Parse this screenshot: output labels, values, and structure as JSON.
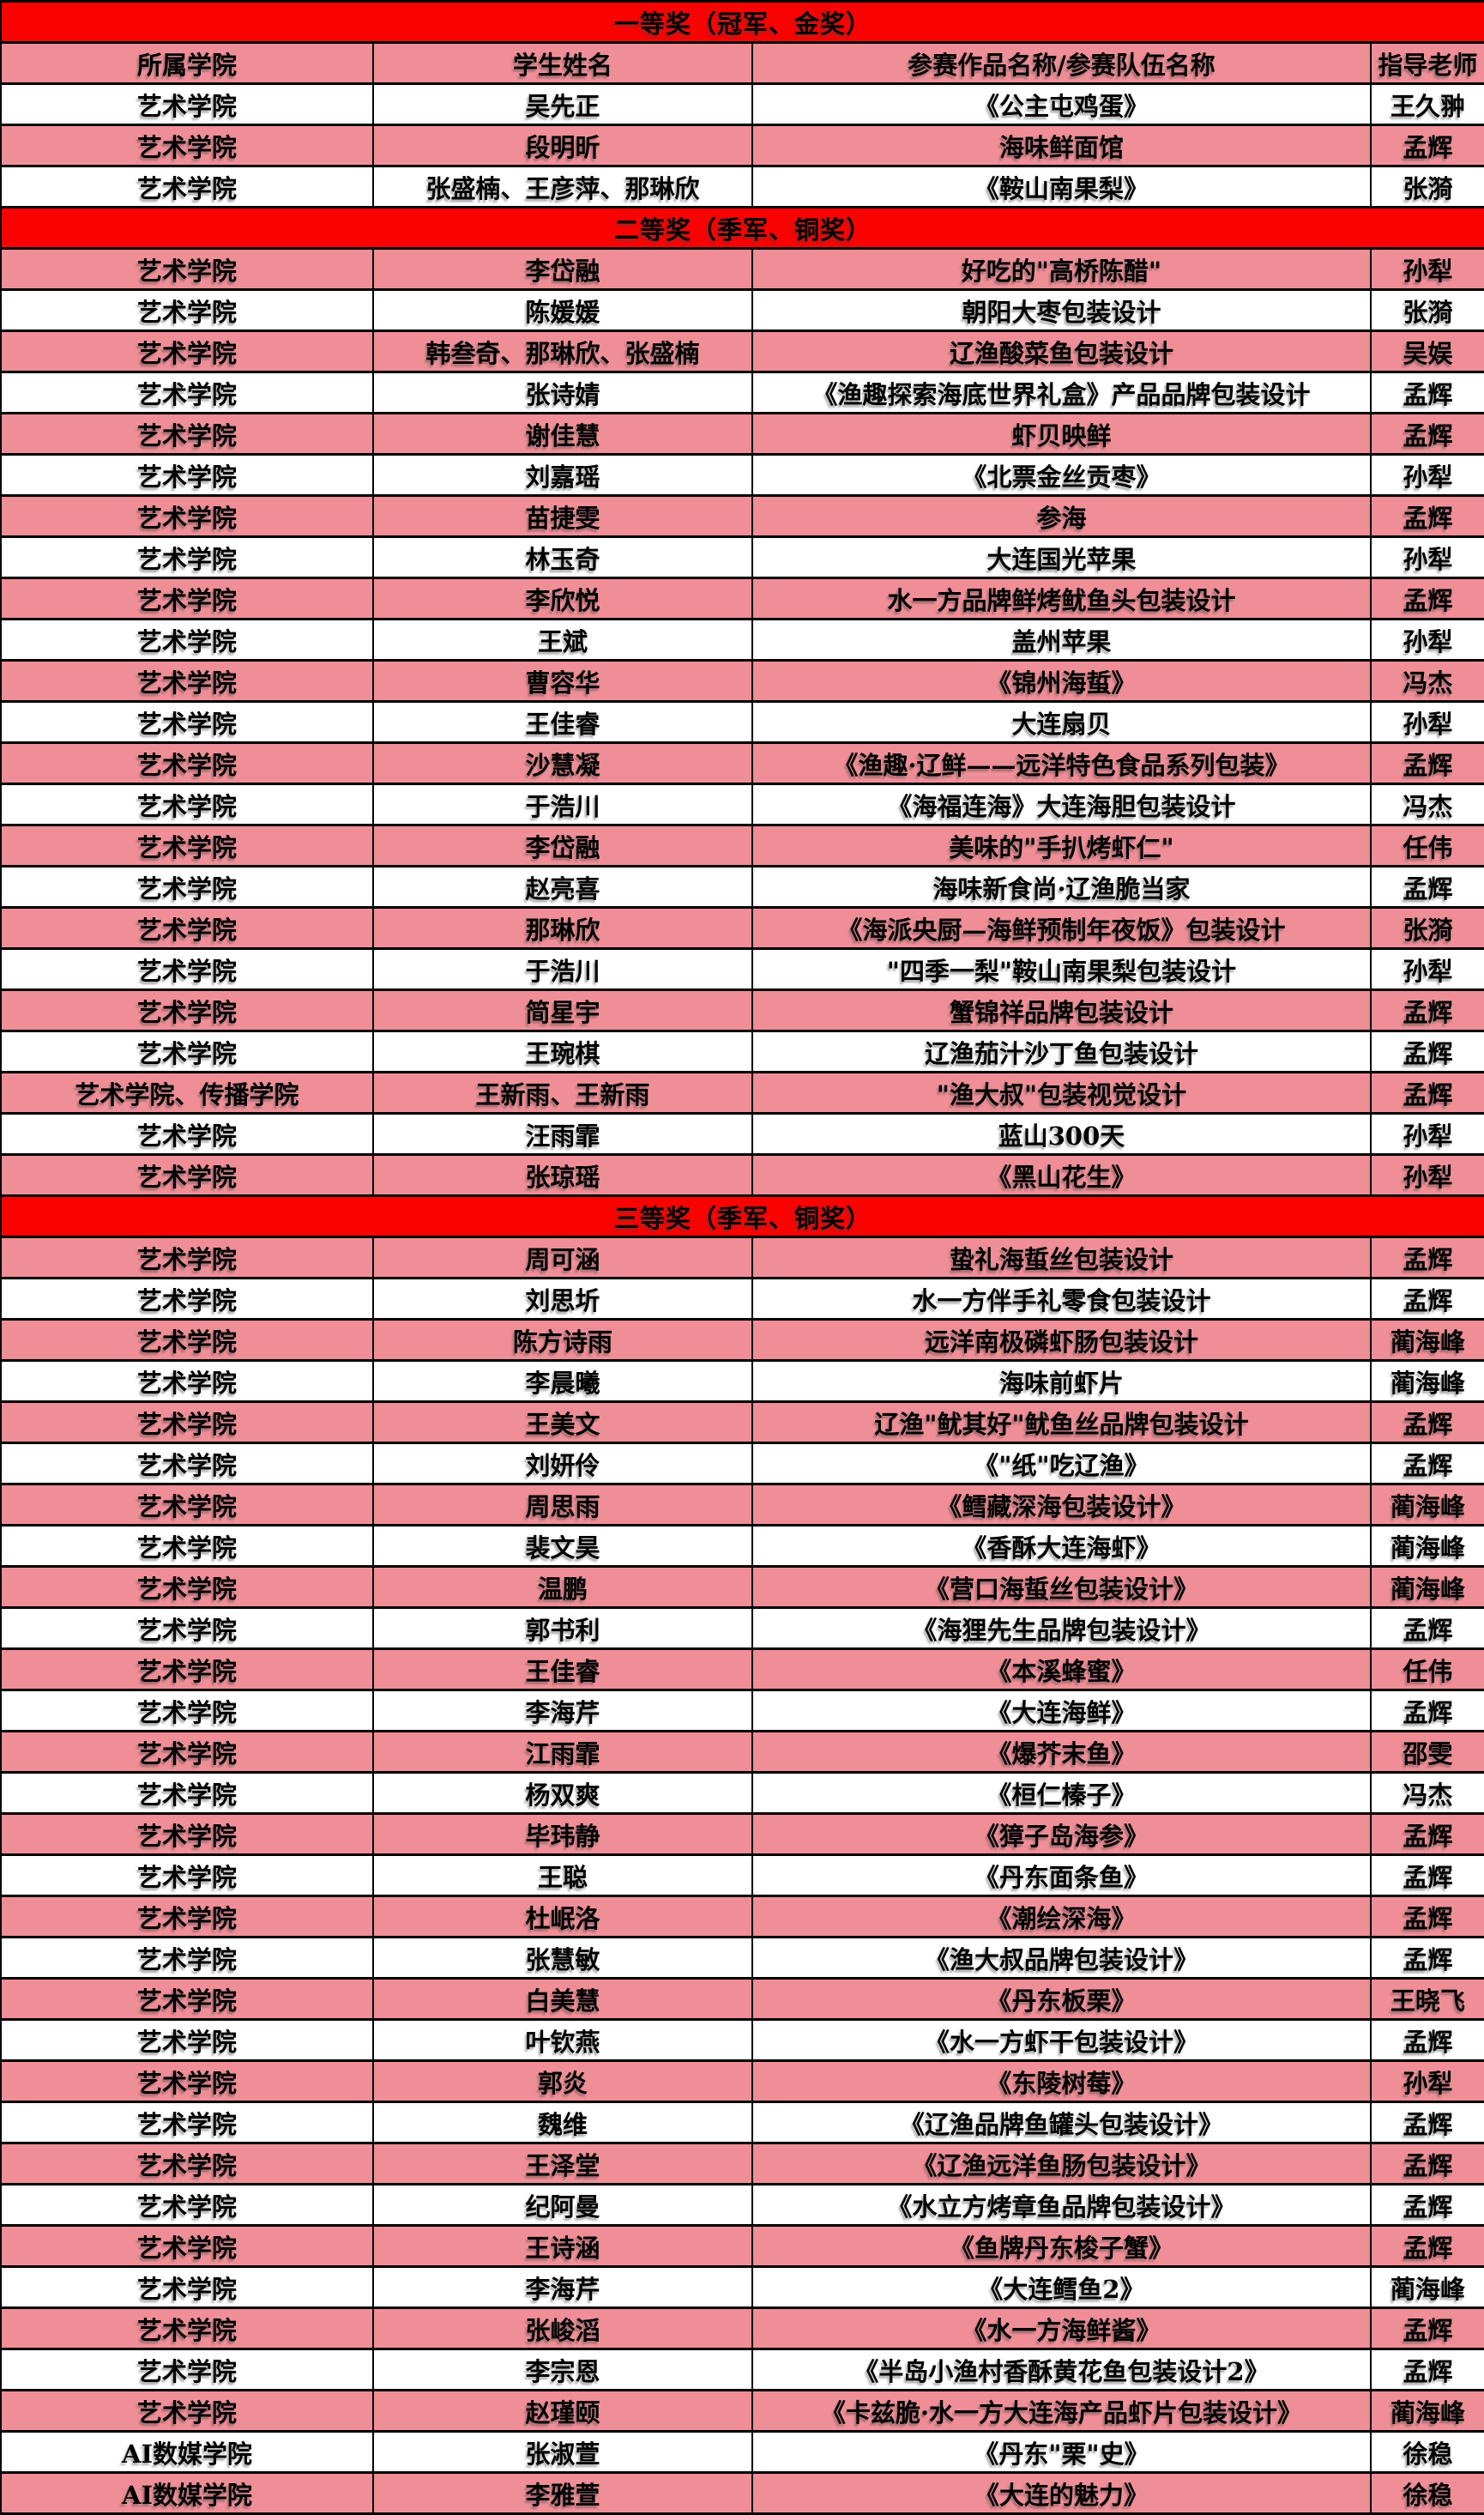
{
  "table": {
    "colors": {
      "section_header_red": "#fa0200",
      "row_pink": "#ef8e96",
      "row_white": "#ffffff",
      "border_black": "#000000",
      "text_black": "#000000"
    },
    "columns": [
      "所属学院",
      "学生姓名",
      "参赛作品名称/参赛队伍名称",
      "指导老师"
    ],
    "sections": [
      {
        "header": "一等奖（冠军、金奖）",
        "show_columns": true,
        "rows": [
          [
            "艺术学院",
            "吴先正",
            "《公主屯鸡蛋》",
            "王久翀"
          ],
          [
            "艺术学院",
            "段明昕",
            "海味鲜面馆",
            "孟辉"
          ],
          [
            "艺术学院",
            "张盛楠、王彦萍、那琳欣",
            "《鞍山南果梨》",
            "张漪"
          ]
        ]
      },
      {
        "header": "二等奖（季军、铜奖）",
        "show_columns": false,
        "rows": [
          [
            "艺术学院",
            "李岱融",
            "好吃的\"高桥陈醋\"",
            "孙犁"
          ],
          [
            "艺术学院",
            "陈媛媛",
            "朝阳大枣包装设计",
            "张漪"
          ],
          [
            "艺术学院",
            "韩叁奇、那琳欣、张盛楠",
            "辽渔酸菜鱼包装设计",
            "吴娱"
          ],
          [
            "艺术学院",
            "张诗婧",
            "《渔趣探索海底世界礼盒》产品品牌包装设计",
            "孟辉"
          ],
          [
            "艺术学院",
            "谢佳慧",
            "虾贝映鲜",
            "孟辉"
          ],
          [
            "艺术学院",
            "刘嘉瑶",
            "《北票金丝贡枣》",
            "孙犁"
          ],
          [
            "艺术学院",
            "苗捷雯",
            "参海",
            "孟辉"
          ],
          [
            "艺术学院",
            "林玉奇",
            "大连国光苹果",
            "孙犁"
          ],
          [
            "艺术学院",
            "李欣悦",
            "水一方品牌鲜烤鱿鱼头包装设计",
            "孟辉"
          ],
          [
            "艺术学院",
            "王斌",
            "盖州苹果",
            "孙犁"
          ],
          [
            "艺术学院",
            "曹容华",
            "《锦州海蜇》",
            "冯杰"
          ],
          [
            "艺术学院",
            "王佳睿",
            "大连扇贝",
            "孙犁"
          ],
          [
            "艺术学院",
            "沙慧凝",
            "《渔趣·辽鲜——远洋特色食品系列包装》",
            "孟辉"
          ],
          [
            "艺术学院",
            "于浩川",
            "《海福连海》大连海胆包装设计",
            "冯杰"
          ],
          [
            "艺术学院",
            "李岱融",
            "美味的\"手扒烤虾仁\"",
            "任伟"
          ],
          [
            "艺术学院",
            "赵亮喜",
            "海味新食尚·辽渔脆当家",
            "孟辉"
          ],
          [
            "艺术学院",
            "那琳欣",
            "《海派央厨—海鲜预制年夜饭》包装设计",
            "张漪"
          ],
          [
            "艺术学院",
            "于浩川",
            "\"四季一梨\"鞍山南果梨包装设计",
            "孙犁"
          ],
          [
            "艺术学院",
            "简星宇",
            "蟹锦祥品牌包装设计",
            "孟辉"
          ],
          [
            "艺术学院",
            "王琬棋",
            "辽渔茄汁沙丁鱼包装设计",
            "孟辉"
          ],
          [
            "艺术学院、传播学院",
            "王新雨、王新雨",
            "\"渔大叔\"包装视觉设计",
            "孟辉"
          ],
          [
            "艺术学院",
            "汪雨霏",
            "蓝山300天",
            "孙犁"
          ],
          [
            "艺术学院",
            "张琼瑶",
            "《黑山花生》",
            "孙犁"
          ]
        ]
      },
      {
        "header": "三等奖（季军、铜奖）",
        "show_columns": false,
        "rows": [
          [
            "艺术学院",
            "周可涵",
            "蛰礼海蜇丝包装设计",
            "孟辉"
          ],
          [
            "艺术学院",
            "刘思圻",
            "水一方伴手礼零食包装设计",
            "孟辉"
          ],
          [
            "艺术学院",
            "陈方诗雨",
            "远洋南极磷虾肠包装设计",
            "蔺海峰"
          ],
          [
            "艺术学院",
            "李晨曦",
            "海味前虾片",
            "蔺海峰"
          ],
          [
            "艺术学院",
            "王美文",
            "辽渔\"鱿其好\"鱿鱼丝品牌包装设计",
            "孟辉"
          ],
          [
            "艺术学院",
            "刘妍伶",
            "《\"纸\"吃辽渔》",
            "孟辉"
          ],
          [
            "艺术学院",
            "周思雨",
            "《鳕藏深海包装设计》",
            "蔺海峰"
          ],
          [
            "艺术学院",
            "裴文昊",
            "《香酥大连海虾》",
            "蔺海峰"
          ],
          [
            "艺术学院",
            "温鹏",
            "《营口海蜇丝包装设计》",
            "蔺海峰"
          ],
          [
            "艺术学院",
            "郭书利",
            "《海狸先生品牌包装设计》",
            "孟辉"
          ],
          [
            "艺术学院",
            "王佳睿",
            "《本溪蜂蜜》",
            "任伟"
          ],
          [
            "艺术学院",
            "李海芹",
            "《大连海鲜》",
            "孟辉"
          ],
          [
            "艺术学院",
            "江雨霏",
            "《爆芥末鱼》",
            "邵雯"
          ],
          [
            "艺术学院",
            "杨双爽",
            "《桓仁榛子》",
            "冯杰"
          ],
          [
            "艺术学院",
            "毕玮静",
            "《獐子岛海参》",
            "孟辉"
          ],
          [
            "艺术学院",
            "王聪",
            "《丹东面条鱼》",
            "孟辉"
          ],
          [
            "艺术学院",
            "杜岷洛",
            "《潮绘深海》",
            "孟辉"
          ],
          [
            "艺术学院",
            "张慧敏",
            "《渔大叔品牌包装设计》",
            "孟辉"
          ],
          [
            "艺术学院",
            "白美慧",
            "《丹东板栗》",
            "王晓飞"
          ],
          [
            "艺术学院",
            "叶钦燕",
            "《水一方虾干包装设计》",
            "孟辉"
          ],
          [
            "艺术学院",
            "郭炎",
            "《东陵树莓》",
            "孙犁"
          ],
          [
            "艺术学院",
            "魏维",
            "《辽渔品牌鱼罐头包装设计》",
            "孟辉"
          ],
          [
            "艺术学院",
            "王泽堂",
            "《辽渔远洋鱼肠包装设计》",
            "孟辉"
          ],
          [
            "艺术学院",
            "纪阿曼",
            "《水立方烤章鱼品牌包装设计》",
            "孟辉"
          ],
          [
            "艺术学院",
            "王诗涵",
            "《鱼牌丹东梭子蟹》",
            "孟辉"
          ],
          [
            "艺术学院",
            "李海芹",
            "《大连鳕鱼2》",
            "蔺海峰"
          ],
          [
            "艺术学院",
            "张峻滔",
            "《水一方海鲜酱》",
            "孟辉"
          ],
          [
            "艺术学院",
            "李宗恩",
            "《半岛小渔村香酥黄花鱼包装设计2》",
            "孟辉"
          ],
          [
            "艺术学院",
            "赵瑾颐",
            "《卡兹脆·水一方大连海产品虾片包装设计》",
            "蔺海峰"
          ],
          [
            "AI数媒学院",
            "张淑萱",
            "《丹东\"栗\"史》",
            "徐稳"
          ],
          [
            "AI数媒学院",
            "李雅萱",
            "《大连的魅力》",
            "徐稳"
          ]
        ]
      }
    ]
  }
}
